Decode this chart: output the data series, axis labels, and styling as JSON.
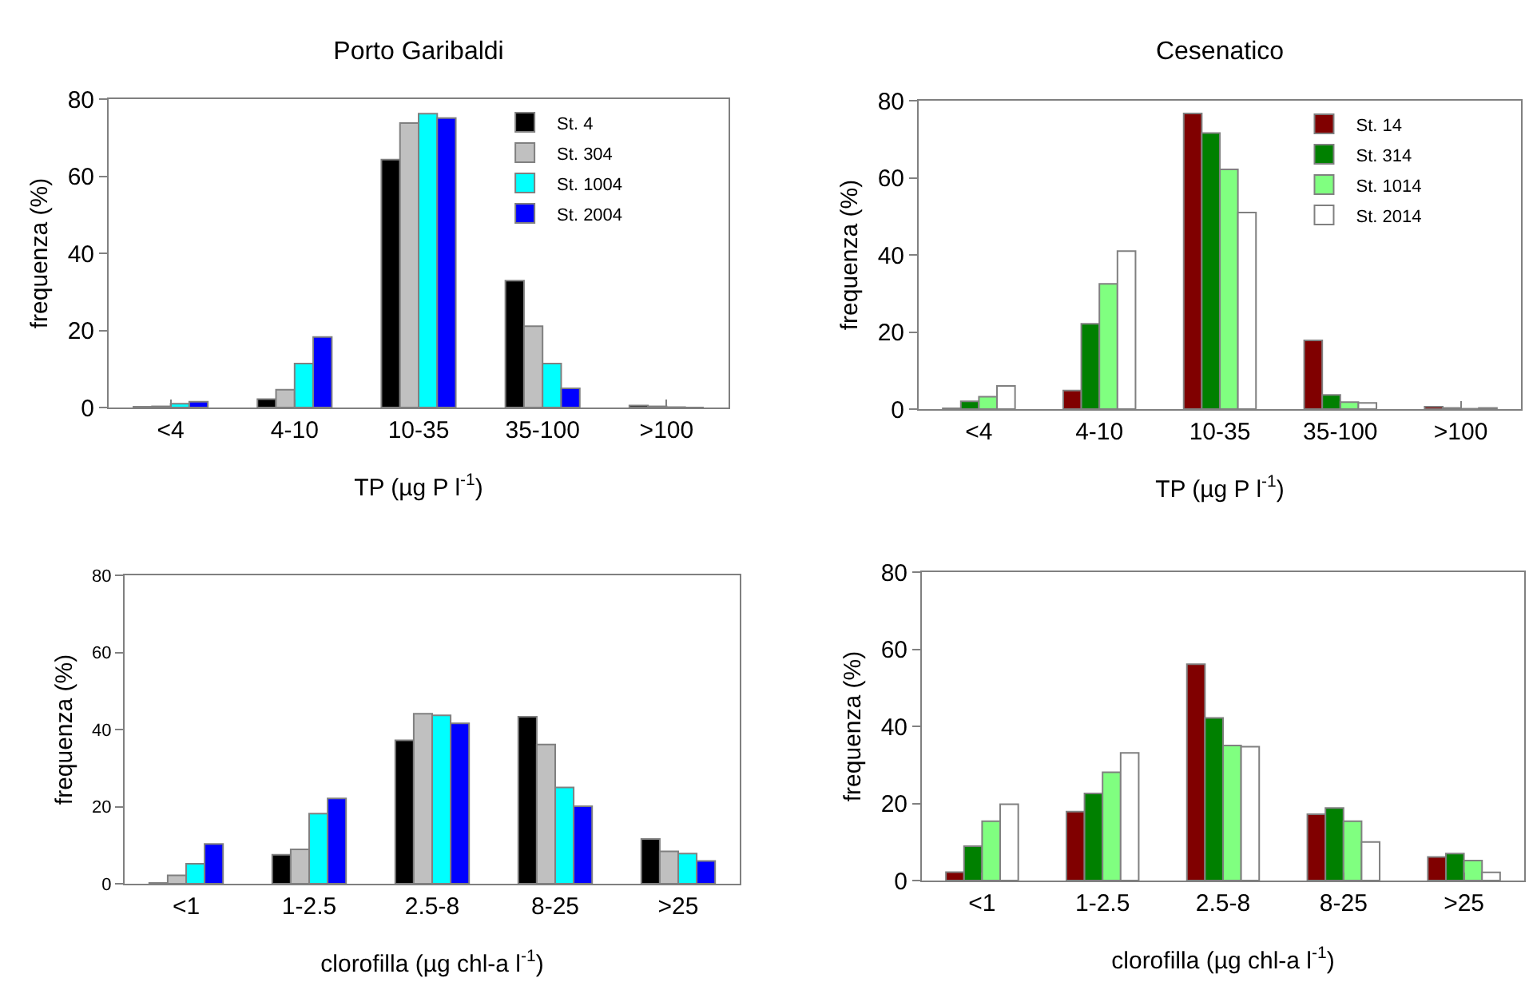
{
  "chart_data": [
    {
      "type": "bar",
      "title": "Porto Garibaldi",
      "xlabel": "TP (µg P l$^{-1}$)",
      "ylabel": "frequenza (%)",
      "categories": [
        "<4",
        "4-10",
        "10-35",
        "35-100",
        ">100"
      ],
      "ylim": [
        0,
        80
      ],
      "yticks": [
        0,
        20,
        40,
        60,
        80
      ],
      "grid": false,
      "legend": "top right",
      "series": [
        {
          "name": "St. 4",
          "color": "#000000",
          "values": [
            0.2,
            2.2,
            64.3,
            32.9,
            0.5
          ]
        },
        {
          "name": "St. 304",
          "color": "#c0c0c0",
          "values": [
            0.3,
            4.6,
            73.8,
            21.1,
            0.3
          ]
        },
        {
          "name": "St. 1004",
          "color": "#00ffff",
          "values": [
            1,
            11.4,
            76.2,
            11.4,
            0.1
          ]
        },
        {
          "name": "St. 2004",
          "color": "#0000ff",
          "values": [
            1.5,
            18.3,
            75.1,
            5,
            0
          ]
        }
      ]
    },
    {
      "type": "bar",
      "title": "Cesenatico",
      "xlabel": "TP (µg P l$^{-1}$)",
      "ylabel": "frequenza (%)",
      "categories": [
        "<4",
        "4-10",
        "10-35",
        "35-100",
        ">100"
      ],
      "ylim": [
        0,
        80
      ],
      "yticks": [
        0,
        20,
        40,
        60,
        80
      ],
      "grid": false,
      "legend": "top right",
      "series": [
        {
          "name": "St. 14",
          "color": "#800000",
          "values": [
            0.2,
            4.8,
            76.7,
            17.8,
            0.6
          ]
        },
        {
          "name": "St. 314",
          "color": "#008000",
          "values": [
            2,
            22.1,
            71.6,
            3.7,
            0.3
          ]
        },
        {
          "name": "St. 1014",
          "color": "#80ff80",
          "values": [
            3.2,
            32.5,
            62.2,
            1.8,
            0.1
          ]
        },
        {
          "name": "St. 2014",
          "color": "#ffffff",
          "values": [
            6,
            41,
            51,
            1.6,
            0.3
          ]
        }
      ]
    },
    {
      "type": "bar",
      "xlabel": "clorofilla (µg chl-a l$^{-1}$)",
      "ylabel": "frequenza (%)",
      "categories": [
        "<1",
        "1-2.5",
        "2.5-8",
        "8-25",
        ">25"
      ],
      "ylim": [
        0,
        80
      ],
      "yticks": [
        0,
        20,
        40,
        60,
        80
      ],
      "grid": false,
      "legend": false,
      "series": [
        {
          "color": "#000000",
          "values": [
            0.2,
            7.5,
            37.2,
            43.3,
            11.6
          ]
        },
        {
          "color": "#c0c0c0",
          "values": [
            2.2,
            8.9,
            44.1,
            36.1,
            8.4
          ]
        },
        {
          "color": "#00ffff",
          "values": [
            5.2,
            18.2,
            43.7,
            25,
            7.8
          ]
        },
        {
          "color": "#0000ff",
          "values": [
            10.3,
            22.1,
            41.6,
            20.1,
            5.9
          ]
        }
      ]
    },
    {
      "type": "bar",
      "xlabel": "clorofilla (µg chl-a l$^{-1}$)",
      "ylabel": "frequenza (%)",
      "categories": [
        "<1",
        "1-2.5",
        "2.5-8",
        "8-25",
        ">25"
      ],
      "ylim": [
        0,
        80
      ],
      "yticks": [
        0,
        20,
        40,
        60,
        80
      ],
      "grid": false,
      "legend": false,
      "series": [
        {
          "color": "#800000",
          "values": [
            2.2,
            17.9,
            56.1,
            17.2,
            6.1
          ]
        },
        {
          "color": "#008000",
          "values": [
            8.9,
            22.6,
            42.2,
            18.8,
            7
          ]
        },
        {
          "color": "#80ff80",
          "values": [
            15.4,
            28.1,
            35,
            15.4,
            5.2
          ]
        },
        {
          "color": "#ffffff",
          "values": [
            19.8,
            33.1,
            34.7,
            10,
            2.1
          ]
        }
      ]
    }
  ]
}
